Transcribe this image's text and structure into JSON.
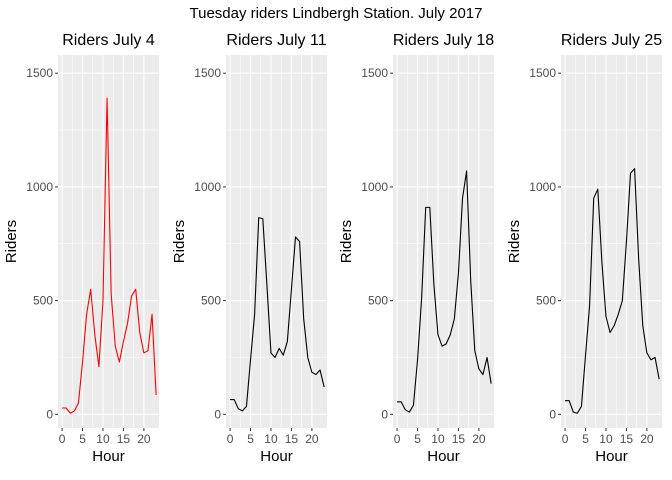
{
  "title": "Tuesday riders Lindbergh Station. July 2017",
  "chart_data": [
    {
      "type": "line",
      "title": "Riders July 4",
      "xlabel": "Hour",
      "ylabel": "Riders",
      "color": "#ff0000",
      "grid": true,
      "xlim": [
        -1,
        23.7
      ],
      "ylim": [
        -60,
        1580
      ],
      "xticks": [
        0,
        5,
        10,
        15,
        20
      ],
      "yticks": [
        0,
        500,
        1000,
        1500
      ],
      "x": [
        0,
        1,
        2,
        3,
        4,
        5,
        6,
        7,
        8,
        9,
        10,
        11,
        12,
        13,
        14,
        15,
        16,
        17,
        18,
        19,
        20,
        21,
        22,
        23
      ],
      "y": [
        28,
        28,
        5,
        15,
        50,
        230,
        440,
        550,
        350,
        210,
        500,
        1390,
        530,
        300,
        230,
        320,
        400,
        520,
        550,
        360,
        270,
        280,
        440,
        85
      ]
    },
    {
      "type": "line",
      "title": "Riders July 11",
      "xlabel": "Hour",
      "ylabel": "Riders",
      "color": "#000000",
      "grid": true,
      "xlim": [
        -1,
        23.7
      ],
      "ylim": [
        -60,
        1580
      ],
      "xticks": [
        0,
        5,
        10,
        15,
        20
      ],
      "yticks": [
        0,
        500,
        1000,
        1500
      ],
      "x": [
        0,
        1,
        2,
        3,
        4,
        5,
        6,
        7,
        8,
        9,
        10,
        11,
        12,
        13,
        14,
        15,
        16,
        17,
        18,
        19,
        20,
        21,
        22,
        23
      ],
      "y": [
        65,
        65,
        25,
        15,
        35,
        240,
        440,
        865,
        860,
        570,
        270,
        250,
        290,
        260,
        320,
        550,
        780,
        760,
        420,
        250,
        185,
        175,
        195,
        120
      ]
    },
    {
      "type": "line",
      "title": "Riders July 18",
      "xlabel": "Hour",
      "ylabel": "Riders",
      "color": "#000000",
      "grid": true,
      "xlim": [
        -1,
        23.7
      ],
      "ylim": [
        -60,
        1580
      ],
      "xticks": [
        0,
        5,
        10,
        15,
        20
      ],
      "yticks": [
        0,
        500,
        1000,
        1500
      ],
      "x": [
        0,
        1,
        2,
        3,
        4,
        5,
        6,
        7,
        8,
        9,
        10,
        11,
        12,
        13,
        14,
        15,
        16,
        17,
        18,
        19,
        20,
        21,
        22,
        23
      ],
      "y": [
        55,
        55,
        20,
        10,
        40,
        240,
        510,
        910,
        910,
        570,
        350,
        300,
        310,
        350,
        420,
        620,
        950,
        1070,
        590,
        280,
        200,
        175,
        250,
        135
      ]
    },
    {
      "type": "line",
      "title": "Riders July 25",
      "xlabel": "Hour",
      "ylabel": "Riders",
      "color": "#000000",
      "grid": true,
      "xlim": [
        -1,
        23.7
      ],
      "ylim": [
        -60,
        1580
      ],
      "xticks": [
        0,
        5,
        10,
        15,
        20
      ],
      "yticks": [
        0,
        500,
        1000,
        1500
      ],
      "x": [
        0,
        1,
        2,
        3,
        4,
        5,
        6,
        7,
        8,
        9,
        10,
        11,
        12,
        13,
        14,
        15,
        16,
        17,
        18,
        19,
        20,
        21,
        22,
        23
      ],
      "y": [
        60,
        60,
        10,
        5,
        35,
        260,
        480,
        950,
        990,
        670,
        430,
        360,
        390,
        440,
        500,
        760,
        1060,
        1080,
        680,
        390,
        270,
        240,
        250,
        155
      ]
    }
  ]
}
